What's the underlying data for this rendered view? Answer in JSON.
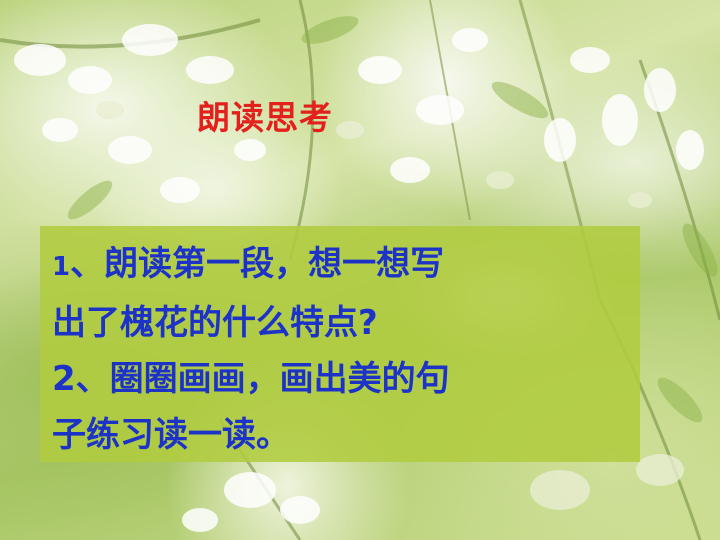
{
  "slide": {
    "title": "朗读思考",
    "questions": [
      {
        "number": "1",
        "line1": "、朗读第一段，想一想写",
        "line2": "出了槐花的什么特点?"
      },
      {
        "number": "2",
        "line1": "、圈圈画画，画出美的句",
        "line2": "子练习读一读。"
      }
    ]
  },
  "colors": {
    "title": "#e3201b",
    "question_text": "#1d33c8",
    "box_background": "#b0cc40"
  },
  "background_icon": "white-locust-blossoms-photo"
}
